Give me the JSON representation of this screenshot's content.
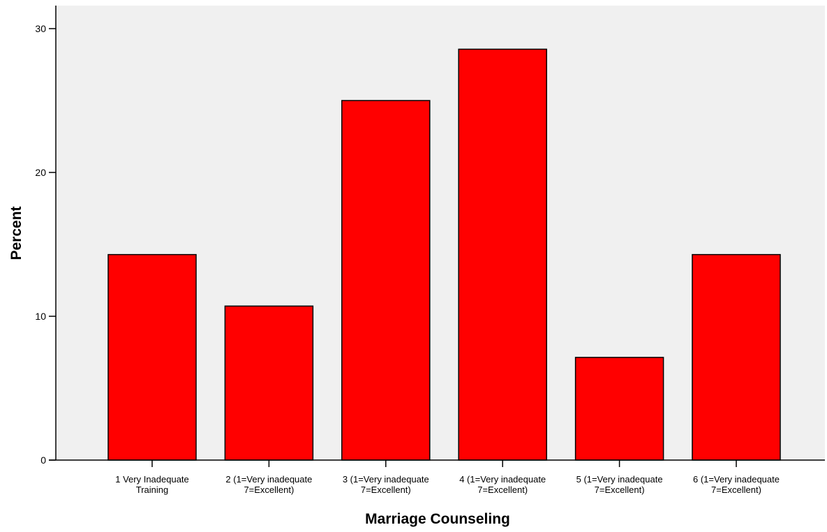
{
  "chart_data": {
    "type": "bar",
    "title": "",
    "xlabel": "Marriage Counseling",
    "ylabel": "Percent",
    "ylim": [
      0,
      30
    ],
    "yticks": [
      0,
      10,
      20,
      30
    ],
    "grid": false,
    "legend": "none",
    "categories": [
      [
        "1 Very Inadequate",
        "Training"
      ],
      [
        "2 (1=Very inadequate",
        "7=Excellent)"
      ],
      [
        "3 (1=Very inadequate",
        "7=Excellent)"
      ],
      [
        "4 (1=Very inadequate",
        "7=Excellent)"
      ],
      [
        "5 (1=Very inadequate",
        "7=Excellent)"
      ],
      [
        "6 (1=Very inadequate",
        "7=Excellent)"
      ]
    ],
    "values": [
      14.29,
      10.71,
      25.0,
      28.57,
      7.14,
      14.29
    ],
    "colors": {
      "bar_fill": "#ff0000",
      "bar_stroke": "#000000",
      "plot_background": "#f0f0f0",
      "axis": "#000000"
    }
  }
}
